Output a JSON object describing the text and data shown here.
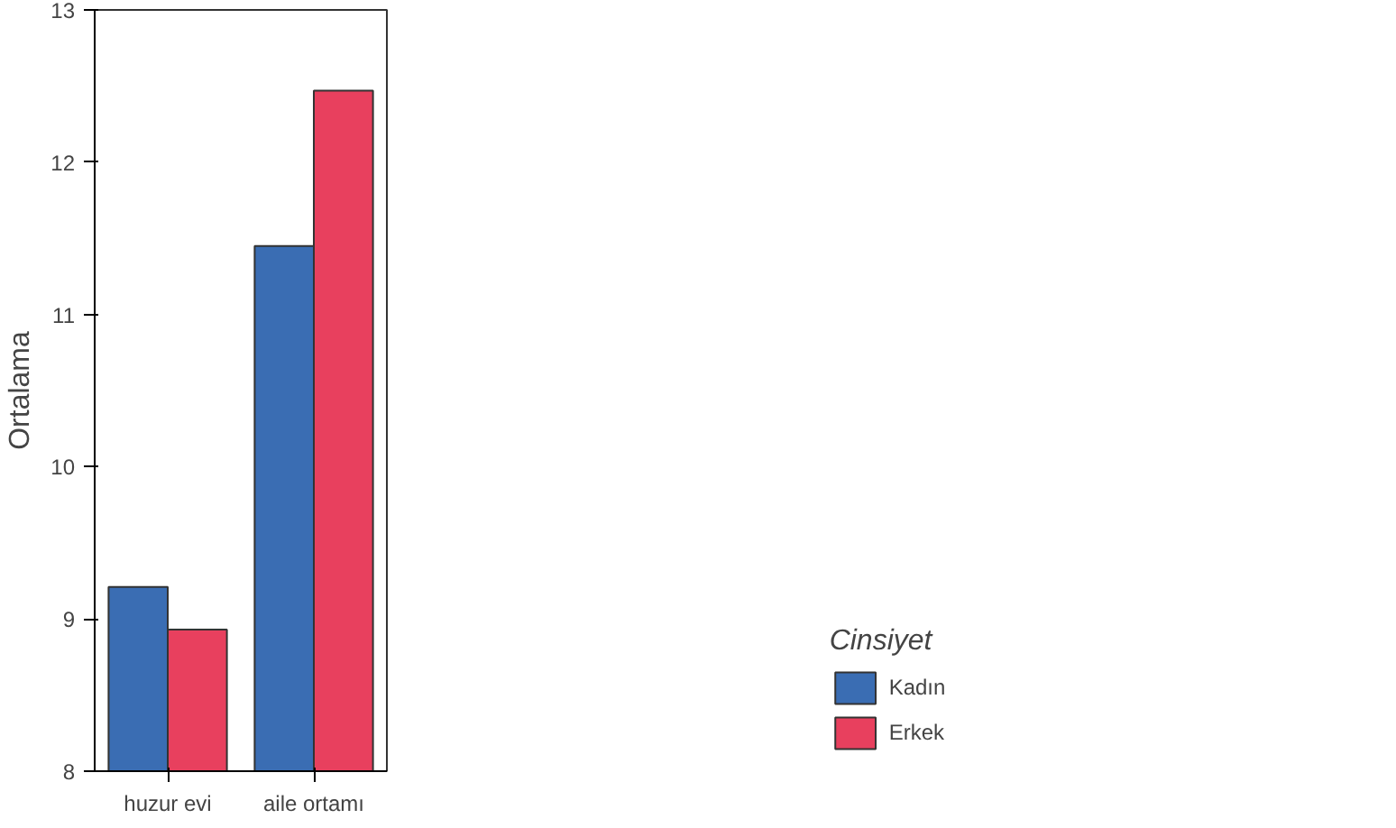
{
  "chart_data": {
    "type": "bar",
    "ylabel": "Ortalama",
    "legend_title": "Cinsiyet",
    "categories": [
      "huzur evi",
      "aile ortamı"
    ],
    "series": [
      {
        "name": "Kadın",
        "color": "#3a6db3",
        "values": [
          9.21,
          11.45
        ]
      },
      {
        "name": "Erkek",
        "color": "#e8405e",
        "values": [
          8.93,
          12.47
        ]
      }
    ],
    "ylim": [
      8,
      13
    ],
    "yticks": [
      8,
      9,
      10,
      11,
      12,
      13
    ],
    "grid": false,
    "legend": "bottom right"
  }
}
